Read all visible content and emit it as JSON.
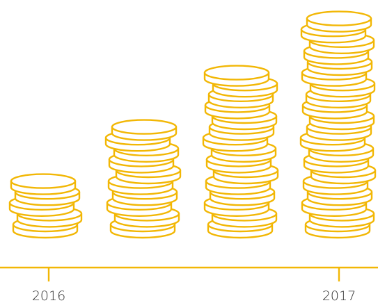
{
  "axis": {
    "labels": [
      "2016",
      "2017"
    ]
  }
}
